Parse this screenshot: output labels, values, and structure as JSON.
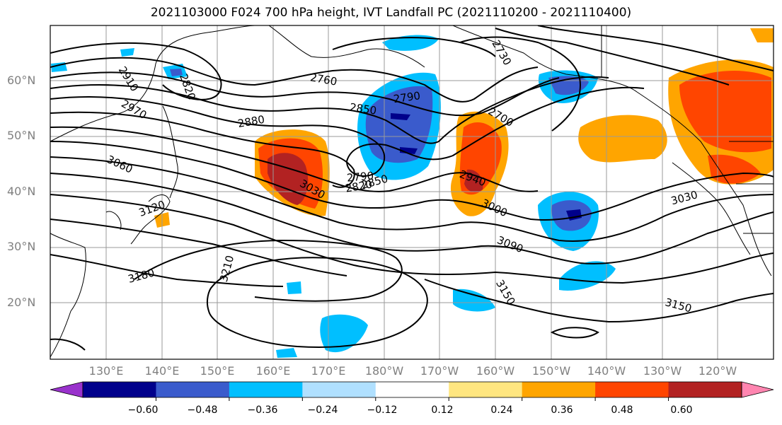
{
  "title": "2021103000 F024 700 hPa height, IVT Landfall PC (2021110200 - 2021110400)",
  "lat_labels": [
    "60°N",
    "50°N",
    "40°N",
    "30°N",
    "20°N"
  ],
  "lon_labels": [
    "130°E",
    "140°E",
    "150°E",
    "160°E",
    "170°E",
    "180°W",
    "170°W",
    "160°W",
    "150°W",
    "140°W",
    "130°W",
    "120°W"
  ],
  "contour_labels": [
    "2910",
    "2820",
    "2760",
    "2730",
    "2970",
    "2880",
    "2850",
    "2790",
    "2700",
    "3060",
    "2790",
    "2820",
    "2850",
    "2940",
    "3030",
    "3120",
    "3000",
    "3030",
    "3090",
    "3210",
    "3180",
    "3150",
    "3150"
  ],
  "colorbar": {
    "colors": [
      "#9932CC",
      "#00008B",
      "#3A5BCC",
      "#00BFFF",
      "#B0E0FF",
      "#FFFFFF",
      "#FFE680",
      "#FFA500",
      "#FF4500",
      "#B22222",
      "#FF85B0"
    ],
    "labels": [
      "−0.60",
      "−0.48",
      "−0.36",
      "−0.24",
      "−0.12",
      "0.12",
      "0.24",
      "0.36",
      "0.48",
      "0.60"
    ]
  }
}
